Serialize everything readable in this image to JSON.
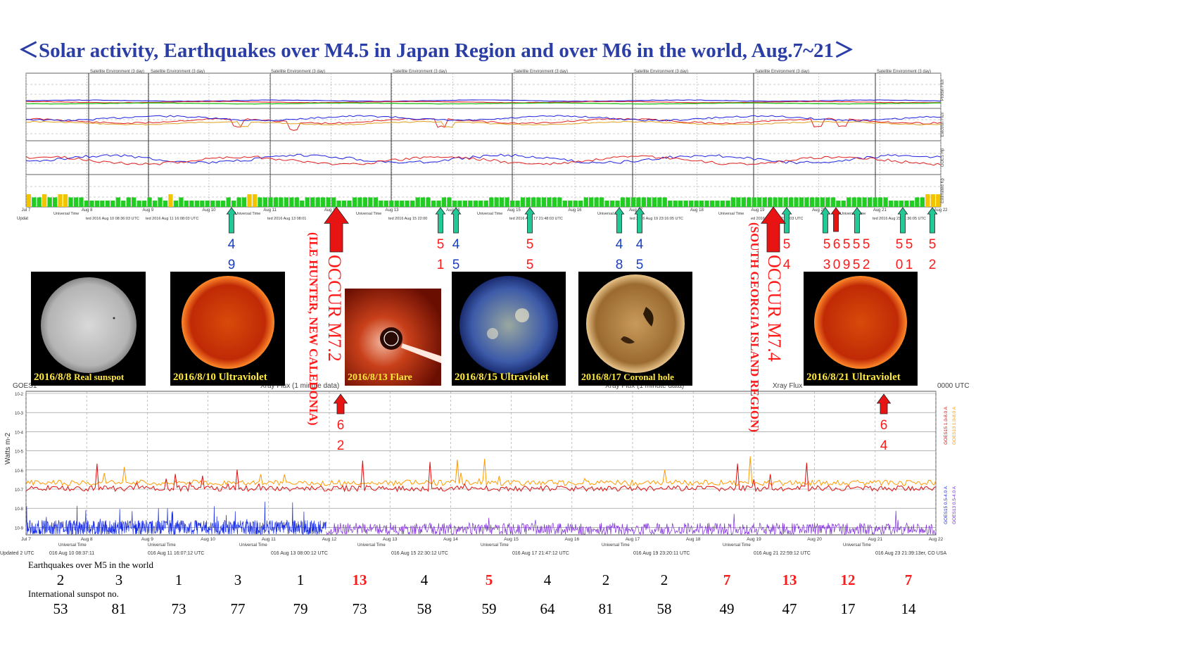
{
  "title": "＜Solar activity, Earthquakes over M4.5 in Japan Region and over M6 in the world, Aug.7~21＞",
  "panel_headers": [
    "Satellite Environment (3 day)"
  ],
  "top_chart": {
    "right_labels": [
      "Proton Flux",
      "Electron Flux",
      "GOES Hp",
      "Estimated Kp"
    ],
    "date_ticks": [
      "Jul 7",
      "Aug 8",
      "Aug 9",
      "Aug 10",
      "Aug 11",
      "Aug 12",
      "Aug 13",
      "Aug 14",
      "Aug 15",
      "Aug 16",
      "Aug 17",
      "Aug 18",
      "Aug 19",
      "Aug 20",
      "Aug 21",
      "Aug 22"
    ],
    "universal_time": "Universal Time",
    "updated_prefix": "Updat",
    "updated_stamps": [
      "ted 2016 Aug 10 08:36:03 UTC",
      "ted 2016 Aug 11 16:08:03 UTC",
      "ted 2016 Aug 13 08:01",
      "ted 2016 Aug 15 22:00",
      "ted 2016 Aug 17 21:48:03 UTC",
      "ted 2016 Aug 19 23:16:05 UTC",
      "ed 2016 Aug 21 22:56:03 UTC",
      "ted 2016 Aug 23 21:36:05 UTC"
    ]
  },
  "xray_chart": {
    "title_fragments": [
      "GOES1",
      "Xray Flux (1 minute data)",
      "Xray Flux (1 minute data)",
      "Xray Flux (1 minute data)",
      "Xray Flux",
      "0000 UTC"
    ],
    "ylabel": "Watts m-2",
    "y_ticks": [
      "10-2",
      "10-3",
      "10-4",
      "10-5",
      "10-6",
      "10-7",
      "10-8",
      "10-9"
    ],
    "right_labels": [
      "GOES15 1.0-8.0 A",
      "GOES13 1.0-8.0 A",
      "GOES15 0.5-4.0 A",
      "GOES13 0.5-4.0 A"
    ],
    "x_ticks": [
      "Jul 7",
      "Aug 8",
      "Aug 9",
      "Aug 10",
      "Aug 11",
      "Aug 12",
      "Aug 13",
      "Aug 14",
      "Aug 15",
      "Aug 16",
      "Aug 17",
      "Aug 18",
      "Aug 19",
      "Aug 20",
      "Aug 21",
      "Aug 22"
    ],
    "universal_time": "Universal Time",
    "updated_line": [
      "Updated 2 UTC",
      "016 Aug 10 08:37:11",
      "016 Aug 11 16:07:12 UTC",
      "016 Aug 13 08:00:12 UTC",
      "016 Aug 15 22:30:12 UTC",
      "016 Aug 17 21:47:12 UTC",
      "016 Aug 19 23:20:11 UTC",
      "016 Aug 21 22:59:12 UTC",
      "016 Aug 23 21:39:13er, CO USA"
    ],
    "colors": {
      "red": "#e01010",
      "orange": "#ff9a00",
      "blue": "#1a2ee8",
      "purple": "#7b2ad8"
    }
  },
  "photos": [
    {
      "caption_date": "2016/8/8",
      "caption_desc": "Real sunspot"
    },
    {
      "caption_date": "2016/8/10",
      "caption_desc": "Ultraviolet"
    },
    {
      "caption_date": "2016/8/13",
      "caption_desc": "Flare"
    },
    {
      "caption_date": "2016/8/15",
      "caption_desc": "Ultraviolet"
    },
    {
      "caption_date": "2016/8/17",
      "caption_desc": "Coronal hole"
    },
    {
      "caption_date": "2016/8/21",
      "caption_desc": "Ultraviolet"
    }
  ],
  "events": {
    "occur1": "OCCUR M7.2",
    "occur1_place": "(ILE HUNTER, NEW CALEDONIA)",
    "occur2": "OCCUR M7.4",
    "occur2_place": "(SOUTH GEORGIA ISLAND REGION)"
  },
  "quake_labels": [
    {
      "top": "4",
      "bottom": "9",
      "color": "#1a3fc0"
    },
    {
      "top": "5",
      "bottom": "1",
      "color": "#ff1a1a"
    },
    {
      "top": "4",
      "bottom": "5",
      "color": "#1a3fc0"
    },
    {
      "top": "5",
      "bottom": "5",
      "color": "#ff1a1a"
    },
    {
      "top": "4",
      "bottom": "8",
      "color": "#1a3fc0"
    },
    {
      "top": "4",
      "bottom": "5",
      "color": "#1a3fc0"
    },
    {
      "top": "5",
      "bottom": "4",
      "color": "#ff1a1a"
    },
    {
      "top": "5",
      "bottom": "3",
      "color": "#ff1a1a"
    },
    {
      "top": "6",
      "bottom": "0",
      "color": "#ff1a1a"
    },
    {
      "top": "5",
      "bottom": "9",
      "color": "#ff1a1a"
    },
    {
      "top": "5",
      "bottom": "5",
      "color": "#ff1a1a"
    },
    {
      "top": "5",
      "bottom": "2",
      "color": "#ff1a1a"
    },
    {
      "top": "5",
      "bottom": "0",
      "color": "#ff1a1a"
    },
    {
      "top": "5",
      "bottom": "1",
      "color": "#ff1a1a"
    },
    {
      "top": "5",
      "bottom": "2",
      "color": "#ff1a1a"
    },
    {
      "top": "6",
      "bottom": "2",
      "color": "#ff1a1a"
    },
    {
      "top": "6",
      "bottom": "4",
      "color": "#ff1a1a"
    }
  ],
  "table": {
    "eq_label": "Earthquakes over M5 in the world",
    "eq_values": [
      {
        "v": "2",
        "c": "#000000"
      },
      {
        "v": "3",
        "c": "#000000"
      },
      {
        "v": "1",
        "c": "#000000"
      },
      {
        "v": "3",
        "c": "#000000"
      },
      {
        "v": "1",
        "c": "#000000"
      },
      {
        "v": "13",
        "c": "#ff1a1a"
      },
      {
        "v": "4",
        "c": "#000000"
      },
      {
        "v": "5",
        "c": "#ff1a1a"
      },
      {
        "v": "4",
        "c": "#000000"
      },
      {
        "v": "2",
        "c": "#000000"
      },
      {
        "v": "2",
        "c": "#000000"
      },
      {
        "v": "7",
        "c": "#ff1a1a"
      },
      {
        "v": "13",
        "c": "#ff1a1a"
      },
      {
        "v": "12",
        "c": "#ff1a1a"
      },
      {
        "v": "7",
        "c": "#ff1a1a"
      }
    ],
    "sunspot_label": "International sunspot no.",
    "sunspot_values": [
      "53",
      "81",
      "73",
      "77",
      "79",
      "73",
      "58",
      "59",
      "64",
      "81",
      "58",
      "49",
      "47",
      "17",
      "14"
    ]
  },
  "chart_data": {
    "type": "bar",
    "title": "＜Solar activity, Earthquakes over M4.5 in Japan Region and over M6 in the world, Aug.7~21＞",
    "categories": [
      "Aug 7",
      "Aug 8",
      "Aug 9",
      "Aug 10",
      "Aug 11",
      "Aug 12",
      "Aug 13",
      "Aug 14",
      "Aug 15",
      "Aug 16",
      "Aug 17",
      "Aug 18",
      "Aug 19",
      "Aug 20",
      "Aug 21"
    ],
    "series": [
      {
        "name": "Earthquakes over M5 in the world",
        "values": [
          2,
          3,
          1,
          3,
          1,
          13,
          4,
          5,
          4,
          2,
          2,
          7,
          13,
          12,
          7
        ]
      },
      {
        "name": "International sunspot no.",
        "values": [
          53,
          81,
          73,
          77,
          79,
          73,
          58,
          59,
          64,
          81,
          58,
          49,
          47,
          17,
          14
        ]
      }
    ],
    "kp": [
      4,
      3,
      3,
      4,
      3,
      3,
      4,
      4,
      3,
      3,
      3,
      2,
      2,
      2,
      2,
      2,
      2,
      3,
      2,
      3,
      3,
      2,
      2,
      3,
      2,
      3,
      2,
      4,
      2,
      3,
      2,
      2,
      2,
      2,
      2,
      2,
      2,
      2,
      3,
      2,
      3,
      3,
      4,
      4,
      3,
      3,
      3,
      3,
      3,
      3,
      3,
      3,
      2,
      3,
      3,
      3,
      3,
      3,
      3,
      2,
      2,
      2,
      3,
      3,
      3,
      3,
      3,
      2,
      2,
      2,
      2,
      2,
      2,
      2,
      3,
      3,
      3,
      2,
      2,
      3,
      3,
      2,
      2,
      2,
      2,
      2,
      2,
      2,
      3,
      3,
      3,
      3,
      2,
      2,
      3,
      3,
      3,
      3,
      3,
      3,
      3,
      3,
      2,
      2,
      2,
      2,
      3,
      3,
      3,
      3,
      2,
      2,
      2,
      3,
      3,
      3,
      3,
      3,
      3,
      3,
      3,
      3,
      2,
      2,
      2,
      2,
      2,
      2,
      2,
      2,
      2,
      2,
      2,
      2,
      3,
      3,
      3,
      3,
      3,
      3,
      3,
      3,
      3,
      3,
      3,
      3,
      3,
      3,
      3,
      3,
      3,
      3,
      3,
      3,
      2,
      2,
      3,
      3,
      3,
      3,
      3,
      3,
      3,
      3,
      2,
      2,
      2,
      2,
      2,
      3,
      3,
      4,
      4,
      4
    ]
  }
}
